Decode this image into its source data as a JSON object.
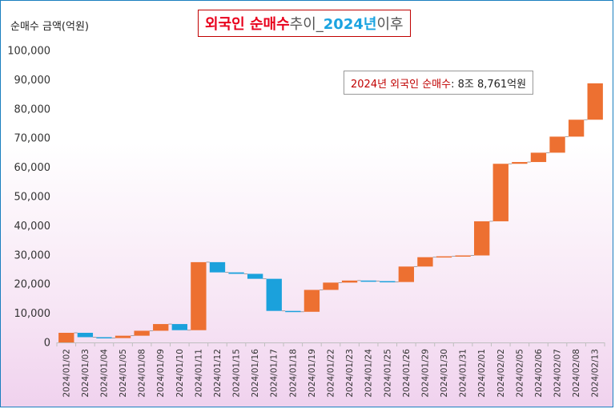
{
  "title": {
    "part1": "외국인 순매수",
    "part2": " 추이_",
    "part3": "2024년",
    "part4": " 이후"
  },
  "unit_label": "순매수 금액(억원)",
  "annotation": {
    "label": "2024년 외국인 순매수",
    "value": " : 8조 8,761억원"
  },
  "colors": {
    "increase": "#ed7031",
    "decrease": "#1ba1dc"
  },
  "chart_data": {
    "type": "bar",
    "subtype": "waterfall",
    "title": "외국인 순매수 추이_2024년 이후",
    "ylabel": "순매수 금액(억원)",
    "ylim": [
      0,
      100000
    ],
    "y_ticks": [
      "100,000",
      "90,000",
      "80,000",
      "70,000",
      "60,000",
      "50,000",
      "40,000",
      "30,000",
      "20,000",
      "10,000",
      "0"
    ],
    "grid": false,
    "categories": [
      "2024/01/02",
      "2024/01/03",
      "2024/01/04",
      "2024/01/05",
      "2024/01/08",
      "2024/01/09",
      "2024/01/10",
      "2024/01/11",
      "2024/01/12",
      "2024/01/15",
      "2024/01/16",
      "2024/01/17",
      "2024/01/18",
      "2024/01/19",
      "2024/01/22",
      "2024/01/23",
      "2024/01/24",
      "2024/01/25",
      "2024/01/26",
      "2024/01/29",
      "2024/01/30",
      "2024/01/31",
      "2024/02/01",
      "2024/02/02",
      "2024/02/05",
      "2024/02/06",
      "2024/02/07",
      "2024/02/08",
      "2024/02/13"
    ],
    "cumulative": [
      3300,
      1800,
      1500,
      2300,
      4000,
      6300,
      4200,
      27500,
      24000,
      23500,
      21800,
      10800,
      10500,
      18000,
      20500,
      21200,
      21000,
      20700,
      26000,
      29200,
      29500,
      29800,
      41500,
      61200,
      61800,
      65000,
      70500,
      76300,
      88761
    ]
  }
}
